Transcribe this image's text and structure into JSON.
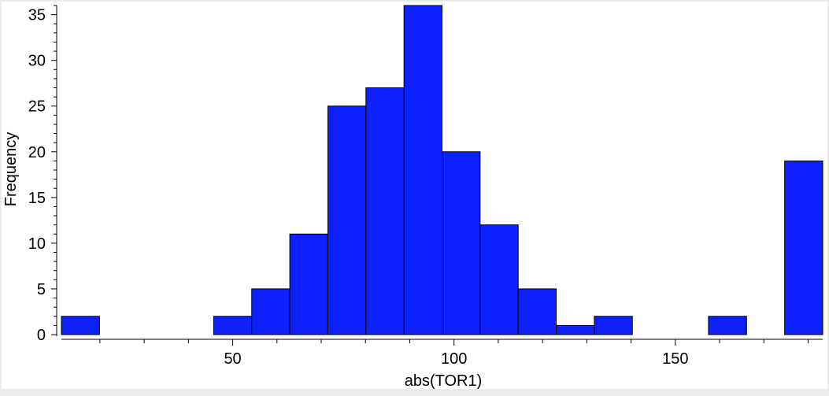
{
  "chart_data": {
    "type": "bar",
    "title": "",
    "xlabel": "abs(TOR1)",
    "ylabel": "Frequency",
    "bin_width": 8.6,
    "bins": [
      {
        "x0": 11.3,
        "x1": 19.9,
        "count": 2
      },
      {
        "x0": 19.9,
        "x1": 28.5,
        "count": 0
      },
      {
        "x0": 28.5,
        "x1": 37.1,
        "count": 0
      },
      {
        "x0": 37.1,
        "x1": 45.7,
        "count": 0
      },
      {
        "x0": 45.7,
        "x1": 54.3,
        "count": 2
      },
      {
        "x0": 54.3,
        "x1": 62.9,
        "count": 5
      },
      {
        "x0": 62.9,
        "x1": 71.5,
        "count": 11
      },
      {
        "x0": 71.5,
        "x1": 80.1,
        "count": 25
      },
      {
        "x0": 80.1,
        "x1": 88.7,
        "count": 27
      },
      {
        "x0": 88.7,
        "x1": 97.3,
        "count": 36
      },
      {
        "x0": 97.3,
        "x1": 105.9,
        "count": 20
      },
      {
        "x0": 105.9,
        "x1": 114.5,
        "count": 12
      },
      {
        "x0": 114.5,
        "x1": 123.1,
        "count": 5
      },
      {
        "x0": 123.1,
        "x1": 131.7,
        "count": 1
      },
      {
        "x0": 131.7,
        "x1": 140.3,
        "count": 2
      },
      {
        "x0": 140.3,
        "x1": 148.9,
        "count": 0
      },
      {
        "x0": 148.9,
        "x1": 157.5,
        "count": 0
      },
      {
        "x0": 157.5,
        "x1": 166.1,
        "count": 2
      },
      {
        "x0": 166.1,
        "x1": 174.7,
        "count": 0
      },
      {
        "x0": 174.7,
        "x1": 183.3,
        "count": 19
      }
    ],
    "xlim": [
      11.3,
      183.3
    ],
    "ylim": [
      0,
      36
    ],
    "x_ticks": [
      50,
      100,
      150
    ],
    "y_ticks": [
      0,
      5,
      10,
      15,
      20,
      25,
      30,
      35
    ],
    "grid": false,
    "bar_color": "#0d21ff",
    "bar_edge_color": "#000000",
    "background_color": "#ffffff"
  }
}
